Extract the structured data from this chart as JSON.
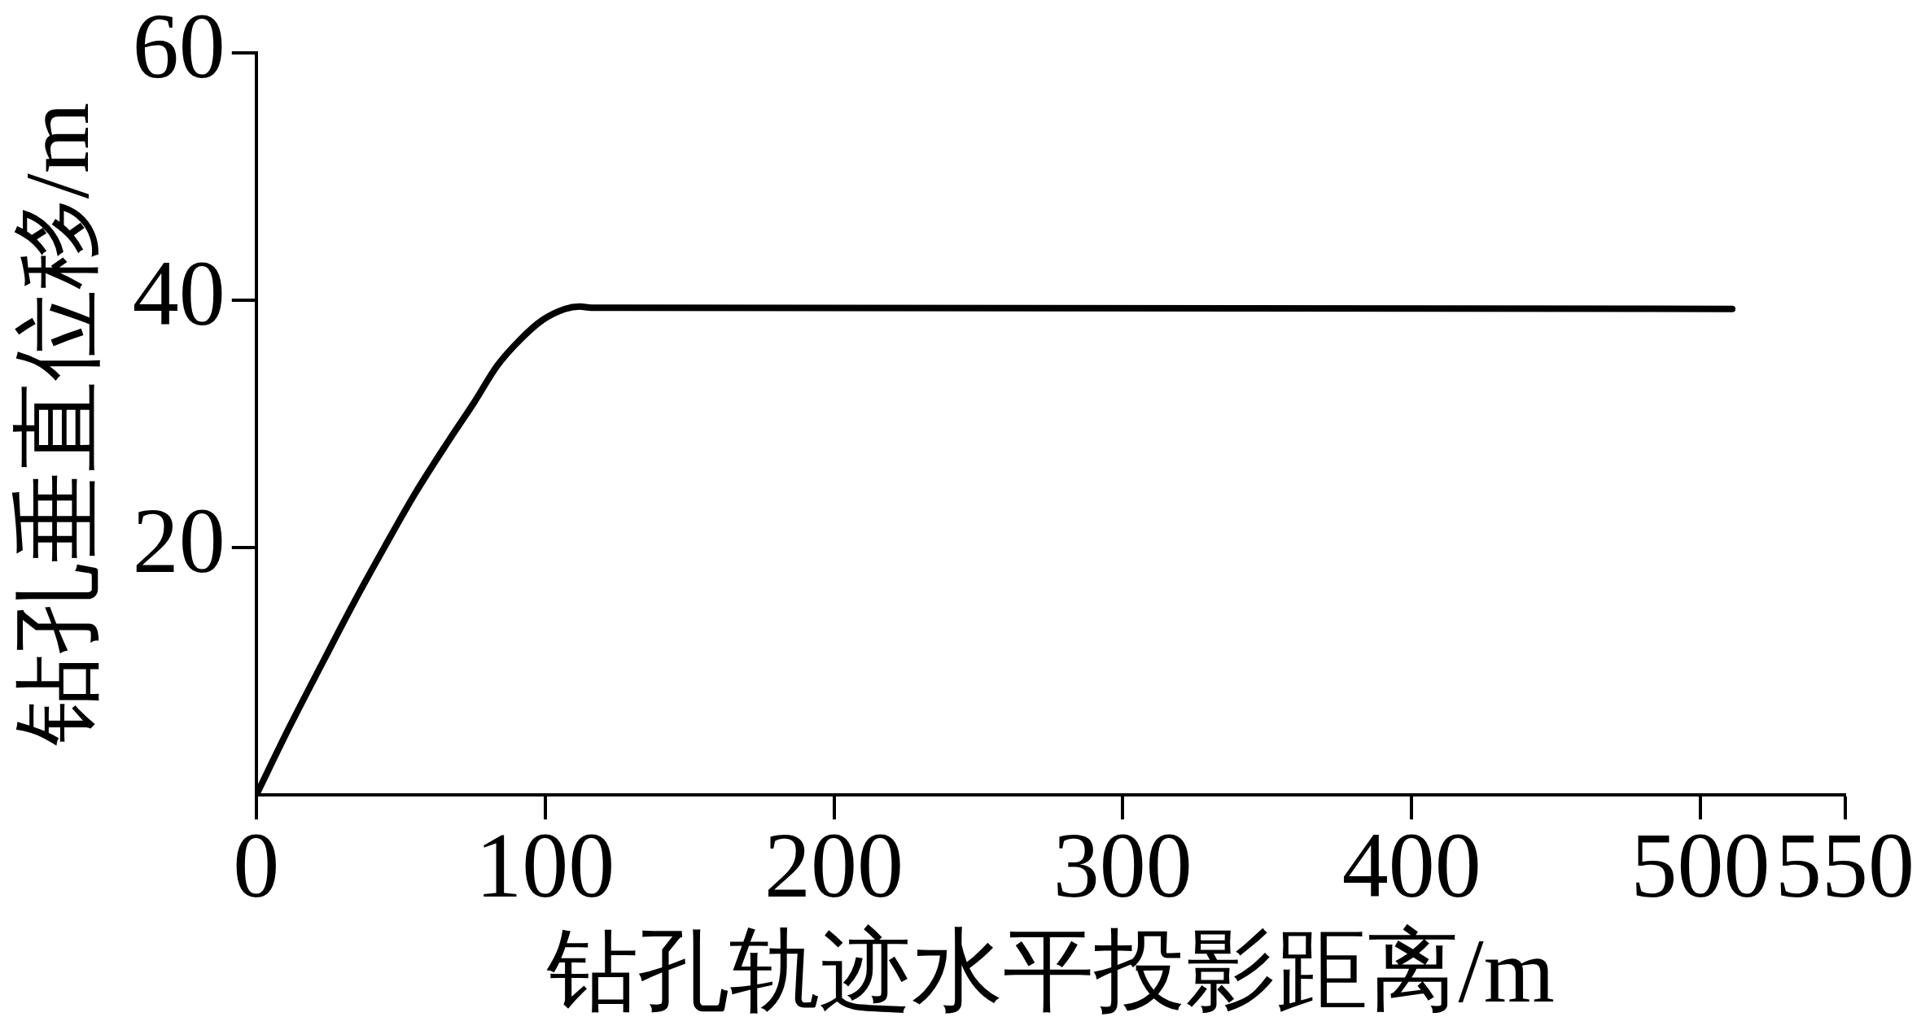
{
  "chart_data": {
    "type": "line",
    "xlabel": "钻孔轨迹水平投影距离/m",
    "ylabel": "钻孔垂直位移/m",
    "x": [
      0,
      11.5,
      23.4,
      33.9,
      44.3,
      54.8,
      66.5,
      75.6,
      83.4,
      91.3,
      99.1,
      106.9,
      112,
      116,
      511
    ],
    "series": [
      {
        "color": "#000000",
        "values": [
          0,
          5.5,
          10.9,
          15.6,
          20.0,
          24.3,
          28.6,
          31.8,
          34.7,
          36.8,
          38.4,
          39.3,
          39.5,
          39.4,
          39.3
        ]
      }
    ],
    "xlim": [
      0,
      550
    ],
    "ylim": [
      0,
      60
    ],
    "xticks": [
      0,
      100,
      200,
      300,
      400,
      500,
      550
    ],
    "yticks": [
      20,
      40,
      60
    ],
    "grid": false,
    "legend": false,
    "marker": "none",
    "line_style": "solid"
  }
}
